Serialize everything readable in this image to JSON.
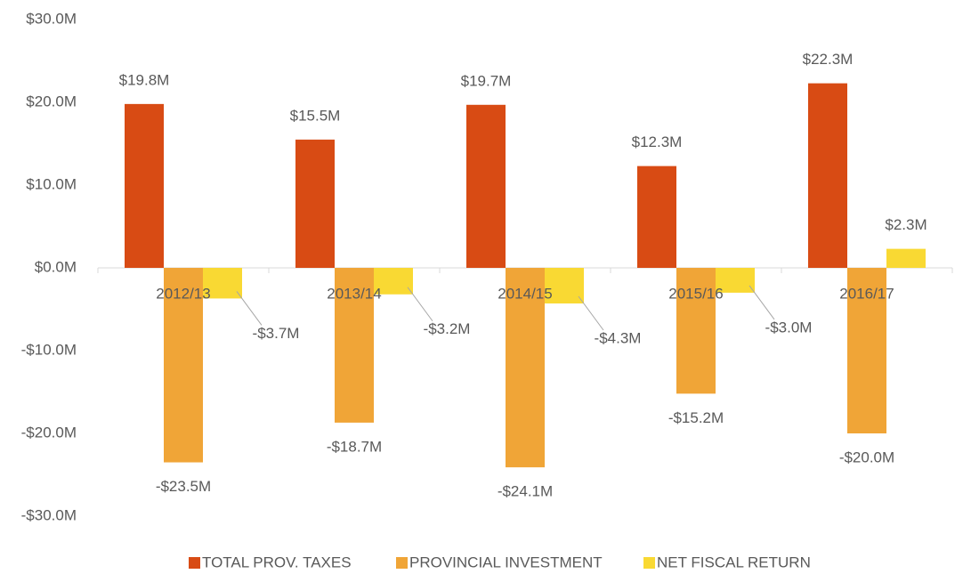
{
  "chart_data": {
    "type": "bar",
    "categories": [
      "2012/13",
      "2013/14",
      "2014/15",
      "2015/16",
      "2016/17"
    ],
    "series": [
      {
        "name": "TOTAL PROV. TAXES",
        "color": "#d84b14",
        "values": [
          19.8,
          15.5,
          19.7,
          12.3,
          22.3
        ],
        "value_labels": [
          "$19.8M",
          "$15.5M",
          "$19.7M",
          "$12.3M",
          "$22.3M"
        ]
      },
      {
        "name": "PROVINCIAL INVESTMENT",
        "color": "#f0a537",
        "values": [
          -23.5,
          -18.7,
          -24.1,
          -15.2,
          -20.0
        ],
        "value_labels": [
          "-$23.5M",
          "-$18.7M",
          "-$24.1M",
          "-$15.2M",
          "-$20.0M"
        ]
      },
      {
        "name": "NET FISCAL RETURN",
        "color": "#f9d933",
        "values": [
          -3.7,
          -3.2,
          -4.3,
          -3.0,
          2.3
        ],
        "value_labels": [
          "-$3.7M",
          "-$3.2M",
          "-$4.3M",
          "-$3.0M",
          "$2.3M"
        ]
      }
    ],
    "ylim": [
      -30,
      30
    ],
    "yticks": [
      {
        "value": -30,
        "label": "-$30.0M"
      },
      {
        "value": -20,
        "label": "-$20.0M"
      },
      {
        "value": -10,
        "label": "-$10.0M"
      },
      {
        "value": 0,
        "label": "$0.0M"
      },
      {
        "value": 10,
        "label": "$10.0M"
      },
      {
        "value": 20,
        "label": "$20.0M"
      },
      {
        "value": 30,
        "label": "$30.0M"
      }
    ],
    "grid": false,
    "legend": "bottom"
  }
}
